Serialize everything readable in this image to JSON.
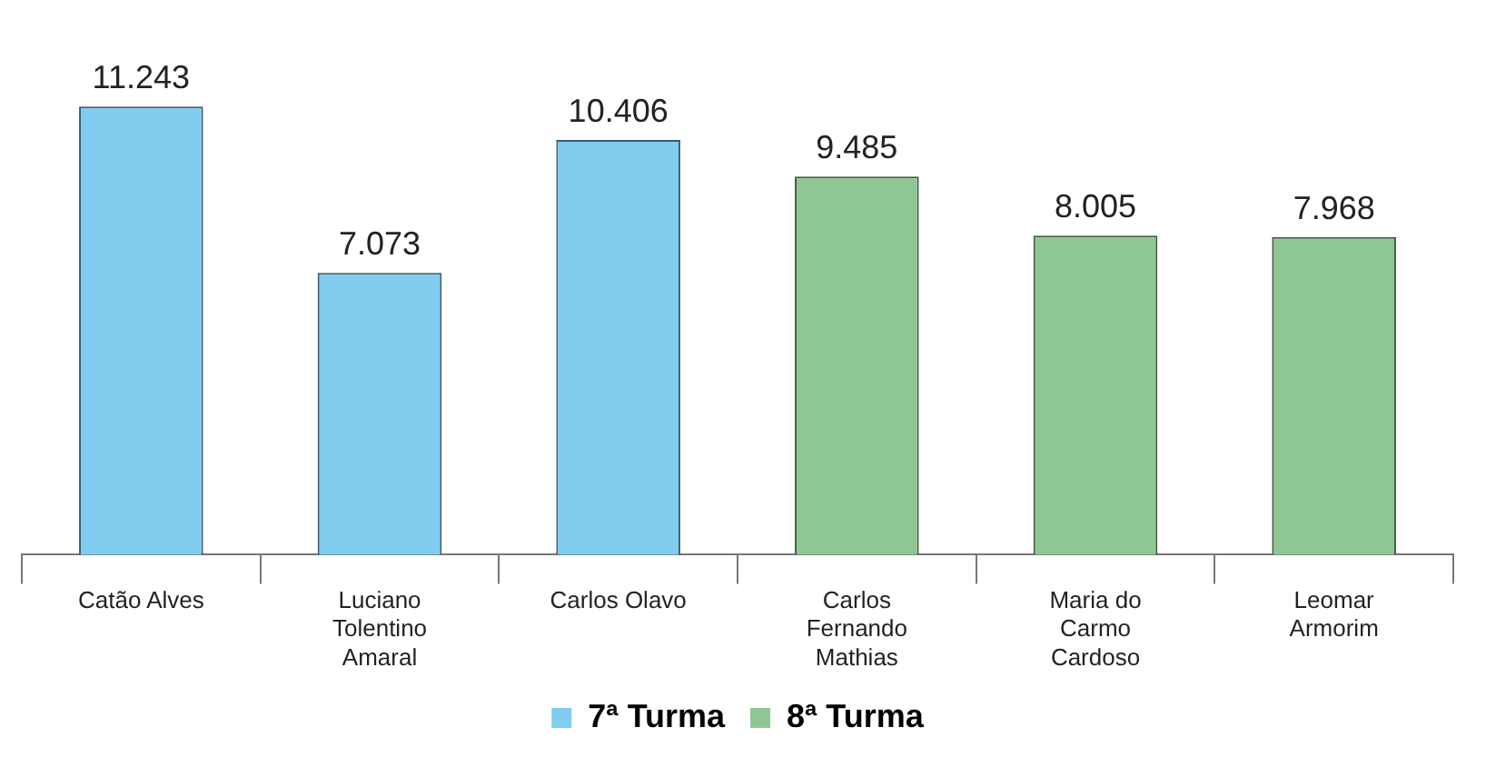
{
  "chart_data": {
    "type": "bar",
    "categories": [
      "Catão Alves",
      "Luciano Tolentino Amaral",
      "Carlos Olavo",
      "Carlos Fernando Mathias",
      "Maria do Carmo Cardoso",
      "Leomar Armorim"
    ],
    "series": [
      {
        "name": "7ª Turma",
        "color": "#80cdf0",
        "values": [
          11243,
          7073,
          10406,
          null,
          null,
          null
        ],
        "value_labels": [
          "11.243",
          "7.073",
          "10.406",
          null,
          null,
          null
        ]
      },
      {
        "name": "8ª Turma",
        "color": "#8fc794",
        "values": [
          null,
          null,
          null,
          9485,
          8005,
          7968
        ],
        "value_labels": [
          null,
          null,
          null,
          "9.485",
          "8.005",
          "7.968"
        ]
      }
    ],
    "legend": "bottom",
    "grid": false
  }
}
